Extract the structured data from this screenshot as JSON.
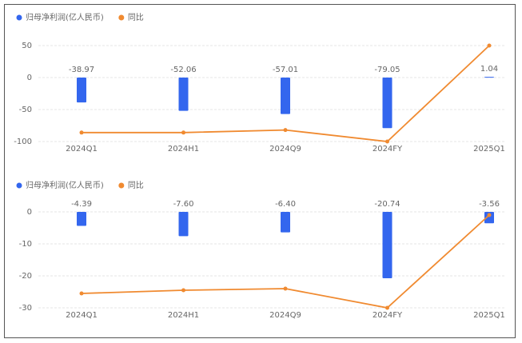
{
  "chart_data": [
    {
      "type": "bar",
      "categories": [
        "2024Q1",
        "2024H1",
        "2024Q9",
        "2024FY",
        "2025Q1"
      ],
      "series": [
        {
          "name": "归母净利润(亿人民币)",
          "type": "bar",
          "color": "#3366ee",
          "values": [
            -38.97,
            -52.06,
            -57.01,
            -79.05,
            1.04
          ]
        },
        {
          "name": "同比",
          "type": "line",
          "color": "#f08a30",
          "values": [
            -86,
            -86,
            -82,
            -100,
            50
          ]
        }
      ],
      "ylim": [
        -100,
        50
      ],
      "yticks": [
        50,
        0,
        -50,
        -100
      ],
      "grid": true
    },
    {
      "type": "bar",
      "categories": [
        "2024Q1",
        "2024H1",
        "2024Q9",
        "2024FY",
        "2025Q1"
      ],
      "series": [
        {
          "name": "归母净利润(亿人民币)",
          "type": "bar",
          "color": "#3366ee",
          "values": [
            -4.39,
            -7.6,
            -6.4,
            -20.74,
            -3.56
          ],
          "value_labels": [
            "-4.39",
            "-7.60",
            "-6.40",
            "-20.74",
            "-3.56"
          ]
        },
        {
          "name": "同比",
          "type": "line",
          "color": "#f08a30",
          "values": [
            -25.5,
            -24.5,
            -24,
            -30,
            -1
          ]
        }
      ],
      "ylim": [
        -30,
        0
      ],
      "yticks": [
        0,
        -10,
        -20,
        -30
      ],
      "grid": true
    }
  ]
}
